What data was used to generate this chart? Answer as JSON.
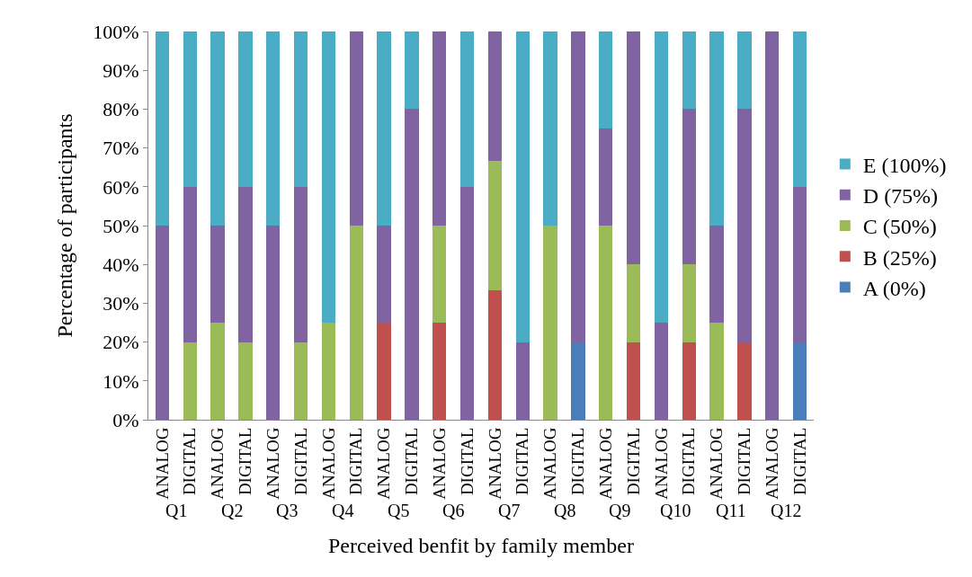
{
  "chart_data": {
    "type": "bar",
    "stacked": true,
    "ylabel": "Percentage of participants",
    "xlabel": "Perceived benfit by family member",
    "categories": [
      "ANALOG",
      "DIGITAL",
      "ANALOG",
      "DIGITAL",
      "ANALOG",
      "DIGITAL",
      "ANALOG",
      "DIGITAL",
      "ANALOG",
      "DIGITAL",
      "ANALOG",
      "DIGITAL",
      "ANALOG",
      "DIGITAL",
      "ANALOG",
      "DIGITAL",
      "ANALOG",
      "DIGITAL",
      "ANALOG",
      "DIGITAL",
      "ANALOG",
      "DIGITAL",
      "ANALOG",
      "DIGITAL"
    ],
    "annotations": [
      "Q1",
      "Q2",
      "Q3",
      "Q4",
      "Q5",
      "Q6",
      "Q7",
      "Q8",
      "Q9",
      "Q10",
      "Q11",
      "Q12"
    ],
    "series": [
      {
        "name": "A (0%)",
        "color": "#4a7ebb",
        "values": [
          null,
          null,
          null,
          null,
          null,
          null,
          null,
          null,
          null,
          null,
          null,
          null,
          null,
          null,
          null,
          20,
          null,
          null,
          null,
          null,
          null,
          null,
          null,
          20
        ]
      },
      {
        "name": "B (25%)",
        "color": "#c0504d",
        "values": [
          null,
          null,
          null,
          null,
          null,
          null,
          null,
          null,
          25,
          null,
          25,
          null,
          33.3,
          null,
          null,
          null,
          null,
          20,
          null,
          20,
          null,
          20,
          null,
          null
        ]
      },
      {
        "name": "C (50%)",
        "color": "#9bbb59",
        "values": [
          null,
          20,
          25,
          20,
          null,
          20,
          25,
          50,
          null,
          null,
          25,
          null,
          33.3,
          null,
          50,
          null,
          50,
          20,
          null,
          20,
          25,
          null,
          null,
          null
        ]
      },
      {
        "name": "D (75%)",
        "color": "#8064a2",
        "values": [
          50,
          40,
          25,
          40,
          50,
          40,
          null,
          50,
          25,
          80,
          50,
          60,
          33.4,
          20,
          null,
          80,
          25,
          60,
          25,
          40,
          25,
          60,
          100,
          40
        ]
      },
      {
        "name": "E (100%)",
        "color": "#4bacc6",
        "values": [
          50,
          40,
          50,
          40,
          50,
          40,
          75,
          null,
          50,
          20,
          null,
          40,
          null,
          80,
          50,
          null,
          25,
          null,
          75,
          20,
          50,
          20,
          null,
          40
        ]
      }
    ],
    "ylim": [
      0,
      100
    ],
    "yticks": [
      {
        "value": 0,
        "label": "0%"
      },
      {
        "value": 10,
        "label": "10%"
      },
      {
        "value": 20,
        "label": "20%"
      },
      {
        "value": 30,
        "label": "30%"
      },
      {
        "value": 40,
        "label": "40%"
      },
      {
        "value": 50,
        "label": "50%"
      },
      {
        "value": 60,
        "label": "60%"
      },
      {
        "value": 70,
        "label": "70%"
      },
      {
        "value": 80,
        "label": "80%"
      },
      {
        "value": 90,
        "label": "90%"
      },
      {
        "value": 100,
        "label": "100%"
      }
    ],
    "legend": "right"
  }
}
